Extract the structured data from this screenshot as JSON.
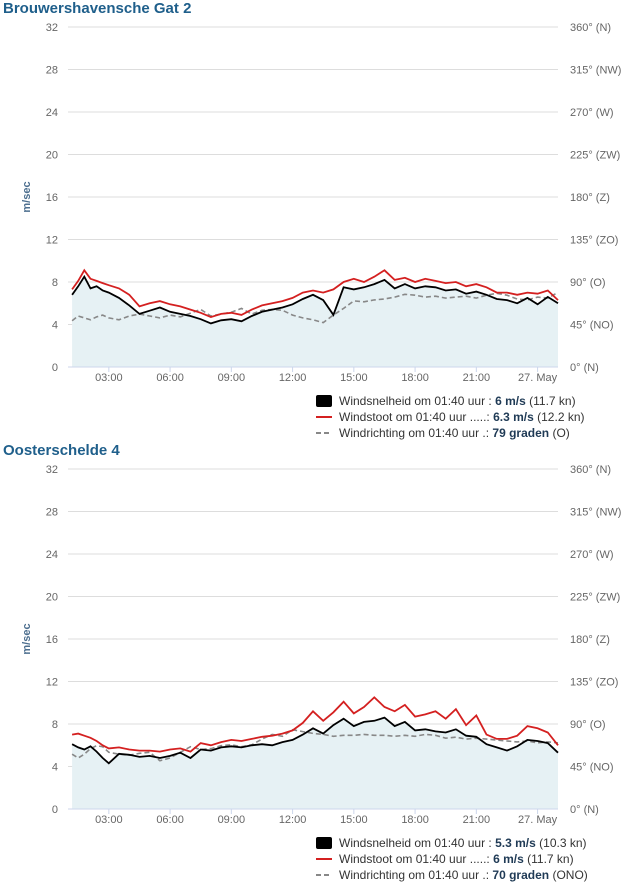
{
  "charts": [
    {
      "title": "Brouwershavensche Gat 2",
      "ylabel": "m/sec",
      "chart_data": {
        "type": "line",
        "title": "Brouwershavensche Gat 2",
        "ylabel": "m/sec",
        "y2label": "",
        "ylim": [
          0,
          32
        ],
        "yticks": [
          0,
          4,
          8,
          12,
          16,
          20,
          24,
          28,
          32
        ],
        "y2ticks": [
          "0° (N)",
          "45° (NO)",
          "90° (O)",
          "135° (ZO)",
          "180° (Z)",
          "225° (ZW)",
          "270° (W)",
          "315° (NW)",
          "360° (N)"
        ],
        "xlim": [
          1.0,
          25.0
        ],
        "xticks": [
          3,
          6,
          9,
          12,
          15,
          18,
          21,
          24
        ],
        "xticklabels": [
          "03:00",
          "06:00",
          "09:00",
          "12:00",
          "15:00",
          "18:00",
          "21:00",
          "27. May"
        ],
        "grid": true,
        "legend": "bottom-right",
        "series": [
          {
            "name": "Windsnelheid",
            "style": "area",
            "color": "#000000",
            "x": [
              1.2,
              1.5,
              1.8,
              2.1,
              2.4,
              2.7,
              3.0,
              3.5,
              4.0,
              4.5,
              5.0,
              5.5,
              6.0,
              6.5,
              7.0,
              7.5,
              8.0,
              8.5,
              9.0,
              9.5,
              10.0,
              10.5,
              11.0,
              11.5,
              12.0,
              12.5,
              13.0,
              13.5,
              14.0,
              14.5,
              15.0,
              15.5,
              16.0,
              16.5,
              17.0,
              17.5,
              18.0,
              18.5,
              19.0,
              19.5,
              20.0,
              20.5,
              21.0,
              21.5,
              22.0,
              22.5,
              23.0,
              23.5,
              24.0,
              24.5,
              25.0
            ],
            "y": [
              6.8,
              7.6,
              8.5,
              7.4,
              7.6,
              7.2,
              7.0,
              6.5,
              5.8,
              5.0,
              5.3,
              5.6,
              5.2,
              5.0,
              4.8,
              4.5,
              4.1,
              4.4,
              4.5,
              4.3,
              4.8,
              5.2,
              5.4,
              5.6,
              5.9,
              6.4,
              6.8,
              6.3,
              4.9,
              7.5,
              7.3,
              7.5,
              7.8,
              8.2,
              7.4,
              7.8,
              7.4,
              7.6,
              7.5,
              7.2,
              7.3,
              6.9,
              7.1,
              6.8,
              6.4,
              6.3,
              6.0,
              6.5,
              5.9,
              6.6,
              6.0
            ]
          },
          {
            "name": "Windstoot",
            "style": "line",
            "color": "#d42020",
            "x": [
              1.2,
              1.5,
              1.8,
              2.1,
              2.4,
              2.7,
              3.0,
              3.5,
              4.0,
              4.5,
              5.0,
              5.5,
              6.0,
              6.5,
              7.0,
              7.5,
              8.0,
              8.5,
              9.0,
              9.5,
              10.0,
              10.5,
              11.0,
              11.5,
              12.0,
              12.5,
              13.0,
              13.5,
              14.0,
              14.5,
              15.0,
              15.5,
              16.0,
              16.5,
              17.0,
              17.5,
              18.0,
              18.5,
              19.0,
              19.5,
              20.0,
              20.5,
              21.0,
              21.5,
              22.0,
              22.5,
              23.0,
              23.5,
              24.0,
              24.5,
              25.0
            ],
            "y": [
              7.3,
              8.1,
              9.1,
              8.3,
              8.1,
              7.9,
              7.7,
              7.4,
              6.8,
              5.7,
              6.0,
              6.2,
              5.9,
              5.7,
              5.4,
              5.1,
              4.7,
              5.0,
              5.1,
              4.9,
              5.4,
              5.8,
              6.0,
              6.2,
              6.5,
              7.0,
              7.2,
              7.0,
              7.3,
              8.0,
              8.3,
              8.0,
              8.5,
              9.1,
              8.2,
              8.4,
              8.0,
              8.3,
              8.1,
              7.9,
              8.0,
              7.6,
              7.8,
              7.5,
              7.0,
              7.0,
              6.8,
              7.0,
              6.9,
              7.2,
              6.3
            ]
          },
          {
            "name": "Windrichting",
            "style": "dashed",
            "color": "#888888",
            "axis": "right",
            "x": [
              1.2,
              1.5,
              1.8,
              2.1,
              2.4,
              2.7,
              3.0,
              3.5,
              4.0,
              4.5,
              5.0,
              5.5,
              6.0,
              6.5,
              7.0,
              7.5,
              8.0,
              8.5,
              9.0,
              9.5,
              10.0,
              10.5,
              11.0,
              11.5,
              12.0,
              12.5,
              13.0,
              13.5,
              14.0,
              14.5,
              15.0,
              15.5,
              16.0,
              16.5,
              17.0,
              17.5,
              18.0,
              18.5,
              19.0,
              19.5,
              20.0,
              20.5,
              21.0,
              21.5,
              22.0,
              22.5,
              23.0,
              23.5,
              24.0,
              24.5,
              25.0
            ],
            "y": [
              49,
              54,
              52,
              50,
              53,
              55,
              52,
              50,
              54,
              56,
              54,
              52,
              55,
              53,
              57,
              61,
              54,
              56,
              58,
              62,
              56,
              60,
              61,
              60,
              55,
              52,
              50,
              47,
              55,
              62,
              70,
              69,
              71,
              72,
              74,
              77,
              76,
              74,
              75,
              73,
              74,
              75,
              73,
              76,
              78,
              76,
              72,
              71,
              74,
              73,
              79
            ]
          }
        ]
      },
      "legend": {
        "items": [
          {
            "label": "Windsnelheid om 01:40 uur :",
            "value": "6 m/s",
            "extra": "(11.7 kn)"
          },
          {
            "label": "Windstoot om 01:40 uur .....:",
            "value": "6.3 m/s",
            "extra": "(12.2 kn)"
          },
          {
            "label": "Windrichting om 01:40 uur .:",
            "value": "79 graden",
            "extra": "(O)"
          }
        ]
      }
    },
    {
      "title": "Oosterschelde 4",
      "ylabel": "m/sec",
      "chart_data": {
        "type": "line",
        "title": "Oosterschelde 4",
        "ylabel": "m/sec",
        "y2label": "",
        "ylim": [
          0,
          32
        ],
        "yticks": [
          0,
          4,
          8,
          12,
          16,
          20,
          24,
          28,
          32
        ],
        "y2ticks": [
          "0° (N)",
          "45° (NO)",
          "90° (O)",
          "135° (ZO)",
          "180° (Z)",
          "225° (ZW)",
          "270° (W)",
          "315° (NW)",
          "360° (N)"
        ],
        "xlim": [
          1.0,
          25.0
        ],
        "xticks": [
          3,
          6,
          9,
          12,
          15,
          18,
          21,
          24
        ],
        "xticklabels": [
          "03:00",
          "06:00",
          "09:00",
          "12:00",
          "15:00",
          "18:00",
          "21:00",
          "27. May"
        ],
        "grid": true,
        "legend": "bottom-right",
        "series": [
          {
            "name": "Windsnelheid",
            "style": "area",
            "color": "#000000",
            "x": [
              1.2,
              1.5,
              1.8,
              2.1,
              2.4,
              2.7,
              3.0,
              3.5,
              4.0,
              4.5,
              5.0,
              5.5,
              6.0,
              6.5,
              7.0,
              7.5,
              8.0,
              8.5,
              9.0,
              9.5,
              10.0,
              10.5,
              11.0,
              11.5,
              12.0,
              12.5,
              13.0,
              13.5,
              14.0,
              14.5,
              15.0,
              15.5,
              16.0,
              16.5,
              17.0,
              17.5,
              18.0,
              18.5,
              19.0,
              19.5,
              20.0,
              20.5,
              21.0,
              21.5,
              22.0,
              22.5,
              23.0,
              23.5,
              24.0,
              24.5,
              25.0
            ],
            "y": [
              6.1,
              5.8,
              5.6,
              5.9,
              5.4,
              4.8,
              4.3,
              5.2,
              5.1,
              4.9,
              5.0,
              4.8,
              5.0,
              5.3,
              4.8,
              5.6,
              5.5,
              5.8,
              5.9,
              5.8,
              6.0,
              6.1,
              6.0,
              6.3,
              6.5,
              7.0,
              7.6,
              7.1,
              7.9,
              8.5,
              7.8,
              8.2,
              8.3,
              8.6,
              7.8,
              8.2,
              7.4,
              7.5,
              7.3,
              7.2,
              7.5,
              6.9,
              6.8,
              6.1,
              5.8,
              5.5,
              5.9,
              6.5,
              6.4,
              6.2,
              5.3
            ]
          },
          {
            "name": "Windstoot",
            "style": "line",
            "color": "#d42020",
            "x": [
              1.2,
              1.5,
              1.8,
              2.1,
              2.4,
              2.7,
              3.0,
              3.5,
              4.0,
              4.5,
              5.0,
              5.5,
              6.0,
              6.5,
              7.0,
              7.5,
              8.0,
              8.5,
              9.0,
              9.5,
              10.0,
              10.5,
              11.0,
              11.5,
              12.0,
              12.5,
              13.0,
              13.5,
              14.0,
              14.5,
              15.0,
              15.5,
              16.0,
              16.5,
              17.0,
              17.5,
              18.0,
              18.5,
              19.0,
              19.5,
              20.0,
              20.5,
              21.0,
              21.5,
              22.0,
              22.5,
              23.0,
              23.5,
              24.0,
              24.5,
              25.0
            ],
            "y": [
              7.0,
              7.1,
              6.9,
              6.7,
              6.4,
              6.0,
              5.7,
              5.8,
              5.6,
              5.5,
              5.5,
              5.4,
              5.6,
              5.7,
              5.4,
              6.2,
              6.0,
              6.3,
              6.5,
              6.4,
              6.6,
              6.8,
              6.9,
              7.1,
              7.4,
              8.1,
              9.2,
              8.3,
              9.1,
              10.1,
              9.0,
              9.6,
              10.5,
              9.6,
              9.2,
              9.8,
              8.7,
              8.9,
              9.2,
              8.5,
              9.4,
              7.9,
              8.8,
              7.0,
              6.6,
              6.6,
              6.9,
              7.8,
              7.6,
              7.2,
              6.0
            ]
          },
          {
            "name": "Windrichting",
            "style": "dashed",
            "color": "#888888",
            "axis": "right",
            "x": [
              1.2,
              1.5,
              1.8,
              2.1,
              2.4,
              2.7,
              3.0,
              3.5,
              4.0,
              4.5,
              5.0,
              5.5,
              6.0,
              6.5,
              7.0,
              7.5,
              8.0,
              8.5,
              9.0,
              9.5,
              10.0,
              10.5,
              11.0,
              11.5,
              12.0,
              12.5,
              13.0,
              13.5,
              14.0,
              14.5,
              15.0,
              15.5,
              16.0,
              16.5,
              17.0,
              17.5,
              18.0,
              18.5,
              19.0,
              19.5,
              20.0,
              20.5,
              21.0,
              21.5,
              22.0,
              22.5,
              23.0,
              23.5,
              24.0,
              24.5,
              25.0
            ],
            "y": [
              58,
              54,
              58,
              64,
              67,
              66,
              60,
              58,
              57,
              59,
              60,
              51,
              54,
              60,
              66,
              63,
              64,
              67,
              68,
              66,
              68,
              74,
              79,
              77,
              84,
              82,
              80,
              79,
              77,
              78,
              78,
              79,
              78,
              78,
              77,
              78,
              77,
              79,
              78,
              75,
              76,
              74,
              75,
              74,
              73,
              72,
              71,
              72,
              70,
              71,
              70
            ]
          }
        ]
      },
      "legend": {
        "items": [
          {
            "label": "Windsnelheid om 01:40 uur :",
            "value": "5.3 m/s",
            "extra": "(10.3 kn)"
          },
          {
            "label": "Windstoot om 01:40 uur .....:",
            "value": "6 m/s",
            "extra": "(11.7 kn)"
          },
          {
            "label": "Windrichting om 01:40 uur .:",
            "value": "70 graden",
            "extra": "(ONO)"
          }
        ]
      }
    }
  ],
  "colors": {
    "title": "#1f5f8b",
    "area_fill": "#e6f1f4",
    "grid": "#dddddd",
    "speed": "#000000",
    "gust": "#d42020",
    "direction": "#888888"
  }
}
